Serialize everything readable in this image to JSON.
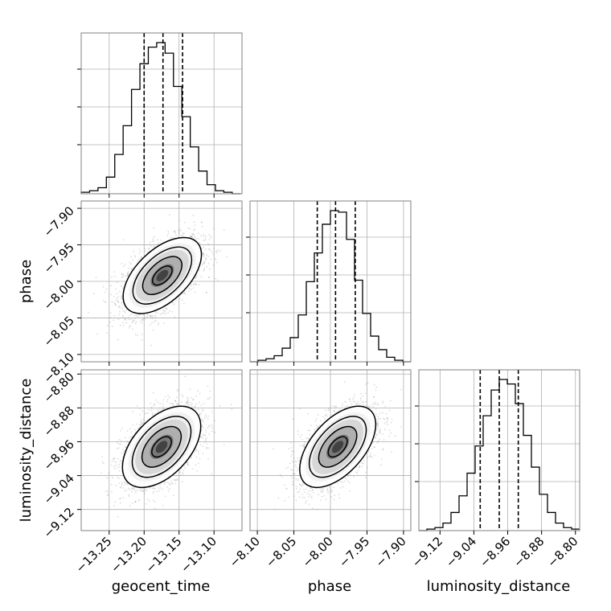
{
  "chart_data": {
    "type": "corner",
    "parameters": [
      "geocent_time",
      "phase",
      "luminosity_distance"
    ],
    "axis_labels": {
      "geocent_time": "geocent_time",
      "phase": "phase",
      "luminosity_distance": "luminosity_distance"
    },
    "ranges": {
      "geocent_time": [
        -13.29,
        -13.06
      ],
      "phase": [
        -8.11,
        -7.89
      ],
      "luminosity_distance": [
        -9.17,
        -8.79
      ]
    },
    "ticks": {
      "geocent_time": [
        -13.25,
        -13.2,
        -13.15,
        -13.1
      ],
      "phase": [
        -8.1,
        -8.05,
        -8.0,
        -7.95,
        -7.9
      ],
      "luminosity_distance": [
        -9.12,
        -9.04,
        -8.96,
        -8.88,
        -8.8
      ]
    },
    "tick_labels": {
      "geocent_time": [
        "−13.25",
        "−13.20",
        "−13.15",
        "−13.10"
      ],
      "phase": [
        "−8.10",
        "−8.05",
        "−8.00",
        "−7.95",
        "−7.90"
      ],
      "luminosity_distance": [
        "−9.12",
        "−9.04",
        "−8.96",
        "−8.88",
        "−8.80"
      ]
    },
    "quantiles": {
      "geocent_time": [
        -13.2,
        -13.173,
        -13.145
      ],
      "phase": [
        -8.018,
        -7.993,
        -7.966
      ],
      "luminosity_distance": [
        -9.025,
        -8.98,
        -8.935
      ]
    },
    "histograms": {
      "geocent_time": {
        "edges": [
          -13.29,
          -13.278,
          -13.266,
          -13.254,
          -13.242,
          -13.23,
          -13.218,
          -13.206,
          -13.194,
          -13.182,
          -13.17,
          -13.158,
          -13.146,
          -13.134,
          -13.122,
          -13.11,
          -13.098,
          -13.086,
          -13.074,
          -13.062
        ],
        "counts": [
          0.01,
          0.02,
          0.04,
          0.11,
          0.26,
          0.45,
          0.69,
          0.86,
          0.97,
          1.0,
          0.93,
          0.71,
          0.51,
          0.31,
          0.15,
          0.06,
          0.02,
          0.01,
          0.0
        ]
      },
      "phase": {
        "edges": [
          -8.11,
          -8.099,
          -8.088,
          -8.077,
          -8.066,
          -8.055,
          -8.044,
          -8.033,
          -8.022,
          -8.011,
          -8.0,
          -7.989,
          -7.978,
          -7.967,
          -7.956,
          -7.945,
          -7.934,
          -7.923,
          -7.912,
          -7.901,
          -7.89
        ],
        "counts": [
          0.0,
          0.01,
          0.02,
          0.04,
          0.09,
          0.16,
          0.31,
          0.53,
          0.72,
          0.91,
          1.0,
          0.99,
          0.81,
          0.54,
          0.32,
          0.17,
          0.08,
          0.03,
          0.01,
          0.0
        ]
      },
      "luminosity_distance": {
        "edges": [
          -9.17,
          -9.151,
          -9.132,
          -9.113,
          -9.094,
          -9.075,
          -9.056,
          -9.037,
          -9.018,
          -8.999,
          -8.98,
          -8.961,
          -8.942,
          -8.923,
          -8.904,
          -8.885,
          -8.866,
          -8.847,
          -8.828,
          -8.809,
          -8.79
        ],
        "counts": [
          0.0,
          0.01,
          0.02,
          0.05,
          0.12,
          0.23,
          0.38,
          0.56,
          0.76,
          0.93,
          1.0,
          0.97,
          0.84,
          0.63,
          0.42,
          0.24,
          0.12,
          0.05,
          0.02,
          0.01
        ]
      }
    },
    "pairs": [
      {
        "x": "geocent_time",
        "y": "phase",
        "center": [
          -13.174,
          -7.992
        ],
        "sigma": [
          0.028,
          0.026
        ],
        "correlation": 0.55,
        "samples": 2600
      },
      {
        "x": "geocent_time",
        "y": "luminosity_distance",
        "center": [
          -13.175,
          -8.972
        ],
        "sigma": [
          0.028,
          0.048
        ],
        "correlation": 0.5,
        "samples": 2600
      },
      {
        "x": "phase",
        "y": "luminosity_distance",
        "center": [
          -7.99,
          -8.972
        ],
        "sigma": [
          0.026,
          0.048
        ],
        "correlation": 0.55,
        "samples": 2600
      }
    ],
    "contour_levels_sigma": [
      0.5,
      1.0,
      1.5,
      2.0
    ],
    "grid": true,
    "colors": {
      "line": "#000000",
      "grid": "#b0b0b0",
      "scatter": "#9a9a9a",
      "axes": "#808080"
    }
  }
}
